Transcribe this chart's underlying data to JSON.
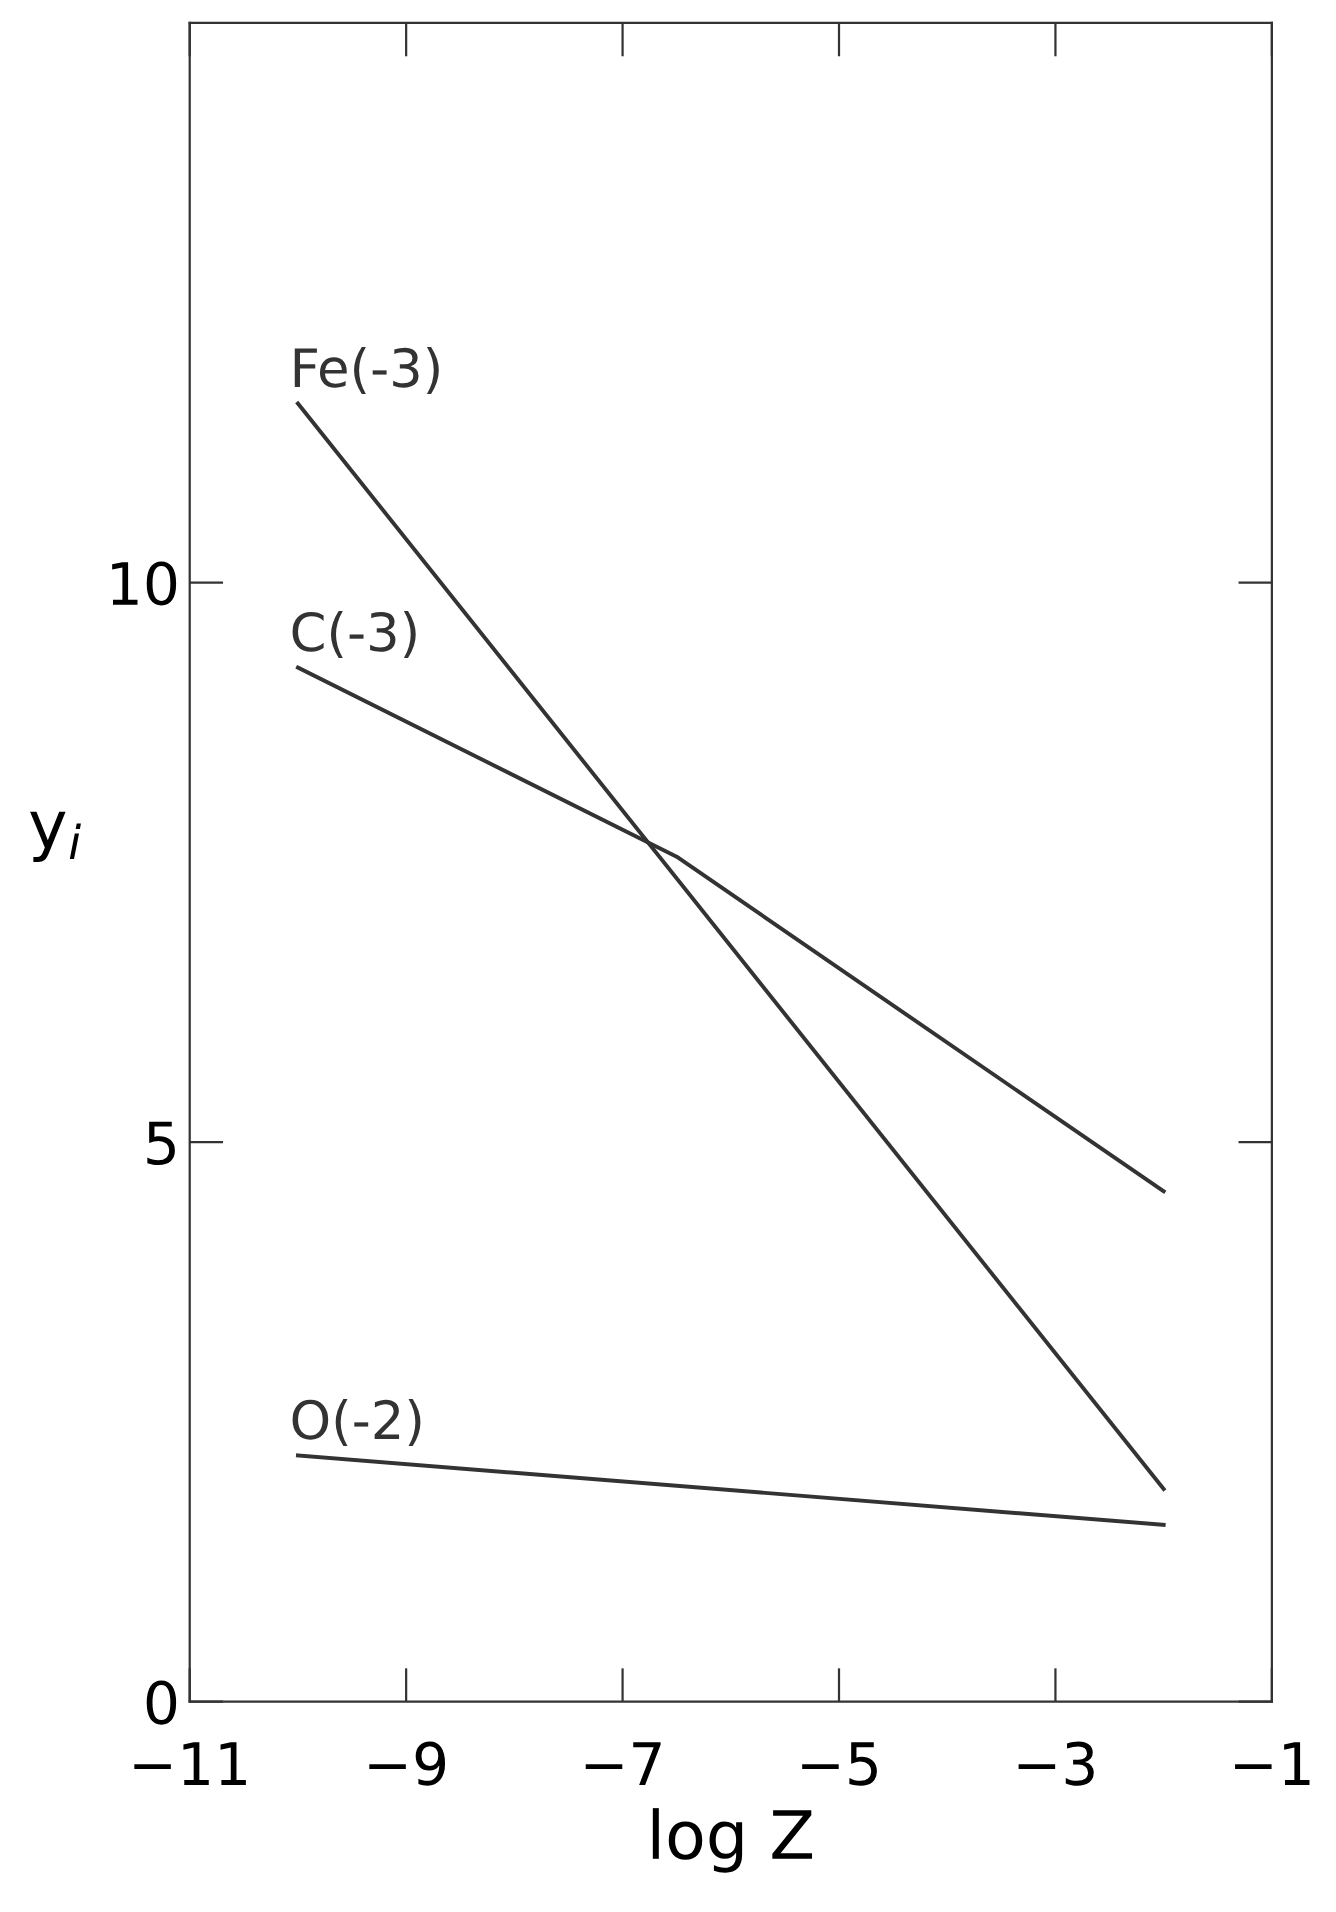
{
  "chart_data": {
    "type": "line",
    "xlabel": "log Z",
    "ylabel": "y$_{i}$",
    "xlim": [
      -11,
      -1
    ],
    "ylim": [
      0,
      15
    ],
    "xticks": [
      -11,
      -9,
      -7,
      -5,
      -3,
      -1
    ],
    "yticks": [
      0,
      5,
      10
    ],
    "grid": false,
    "legend": false,
    "marker": "none",
    "line_style": "solid",
    "series": [
      {
        "name": "Fe(-3)",
        "color": "#333333",
        "x": [
          -10,
          -2
        ],
        "values": [
          11.6,
          1.9
        ]
      },
      {
        "name": "C(-3)",
        "color": "#333333",
        "x": [
          -10,
          -6.5,
          -2
        ],
        "values": [
          9.24,
          7.55,
          4.56
        ]
      },
      {
        "name": "O(-2)",
        "color": "#333333",
        "x": [
          -10,
          -2
        ],
        "values": [
          2.2,
          1.58
        ]
      }
    ]
  }
}
